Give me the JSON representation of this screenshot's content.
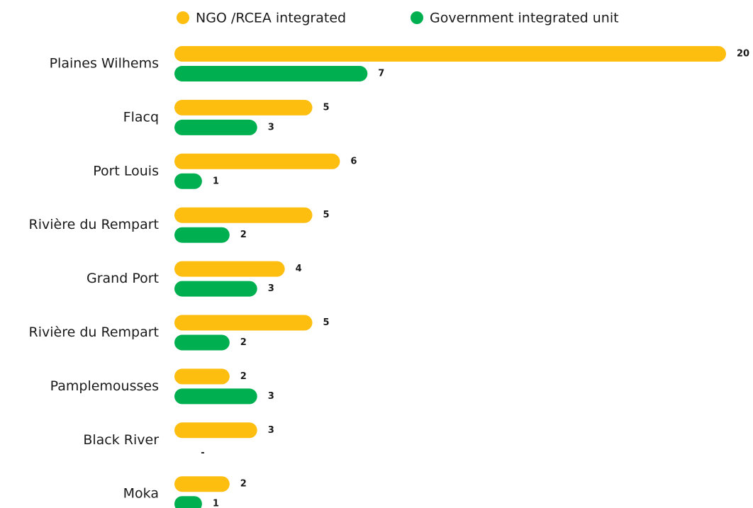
{
  "chart_data": {
    "type": "bar",
    "orientation": "horizontal",
    "categories": [
      "Plaines Wilhems",
      "Flacq",
      "Port Louis",
      "Rivière du Rempart",
      "Grand Port",
      "Rivière du Rempart",
      "Pamplemousses",
      "Black River",
      "Moka"
    ],
    "series": [
      {
        "name": "NGO /RCEA integrated",
        "color": "#fdbe10",
        "values": [
          20,
          5,
          6,
          5,
          4,
          5,
          2,
          3,
          2
        ]
      },
      {
        "name": "Government integrated unit",
        "color": "#00b050",
        "values": [
          7,
          3,
          1,
          2,
          3,
          2,
          3,
          null,
          1
        ],
        "value_labels": [
          "7",
          "3",
          "1",
          "2",
          "3",
          "2",
          "3",
          "-",
          "1"
        ]
      }
    ],
    "legend": "top"
  }
}
